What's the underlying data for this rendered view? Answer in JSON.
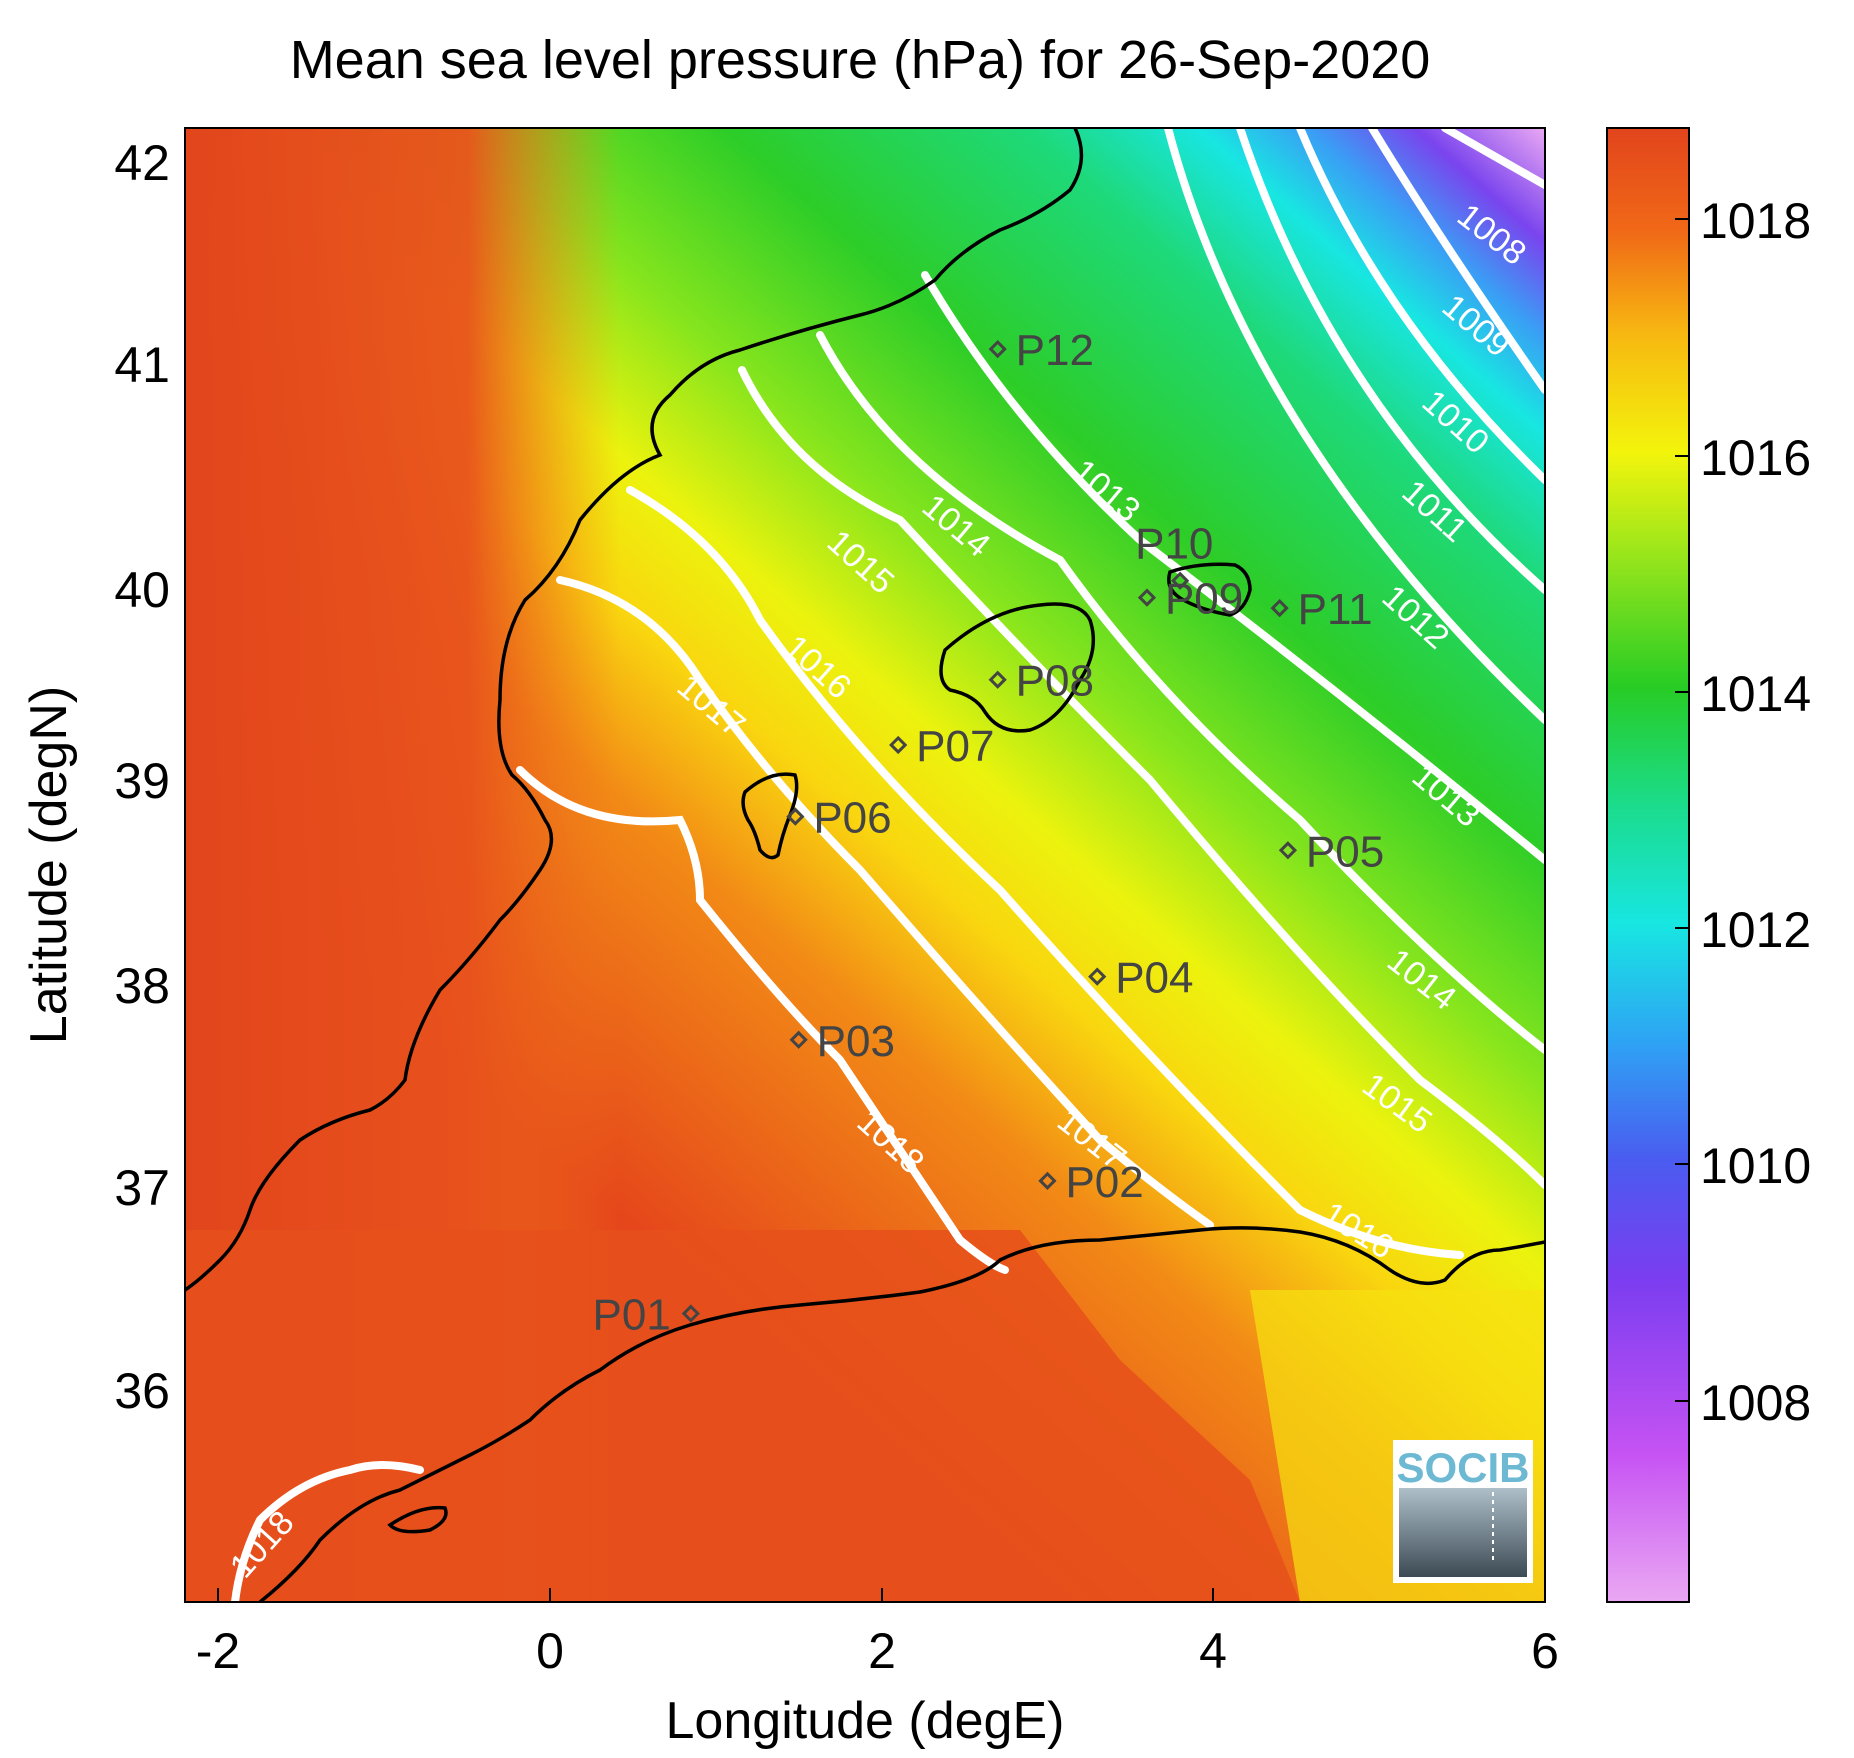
{
  "title": "Mean sea level pressure (hPa) for 26-Sep-2020",
  "chart_data": {
    "type": "heatmap",
    "title": "Mean sea level pressure (hPa) for 26-Sep-2020",
    "xlabel": "Longitude (degE)",
    "ylabel": "Latitude (degN)",
    "xlim": [
      -2.2,
      6
    ],
    "ylim": [
      35.15,
      42.15
    ],
    "x_ticks": [
      "-2",
      "0",
      "2",
      "4",
      "6"
    ],
    "y_ticks": [
      "42",
      "41",
      "40",
      "39",
      "38",
      "37",
      "36"
    ],
    "colorbar": {
      "range": [
        1006.3,
        1018.8
      ],
      "ticks": [
        "1008",
        "1010",
        "1012",
        "1014",
        "1016",
        "1018"
      ]
    },
    "contour_labels": [
      "1008",
      "1009",
      "1010",
      "1011",
      "1012",
      "1013",
      "1014",
      "1015",
      "1016",
      "1017",
      "1018"
    ],
    "points": [
      {
        "name": "P01",
        "lon": 0.85,
        "lat": 36.52
      },
      {
        "name": "P02",
        "lon": 3.0,
        "lat": 37.15
      },
      {
        "name": "P03",
        "lon": 1.5,
        "lat": 37.82
      },
      {
        "name": "P04",
        "lon": 3.3,
        "lat": 38.12
      },
      {
        "name": "P05",
        "lon": 4.45,
        "lat": 38.72
      },
      {
        "name": "P06",
        "lon": 1.48,
        "lat": 38.88
      },
      {
        "name": "P07",
        "lon": 2.1,
        "lat": 39.22
      },
      {
        "name": "P08",
        "lon": 2.7,
        "lat": 39.53
      },
      {
        "name": "P09",
        "lon": 3.6,
        "lat": 39.92
      },
      {
        "name": "P10",
        "lon": 3.8,
        "lat": 40.0
      },
      {
        "name": "P11",
        "lon": 4.4,
        "lat": 39.87
      },
      {
        "name": "P12",
        "lon": 2.7,
        "lat": 41.1
      }
    ],
    "grid": false,
    "colors": {
      "high": "#e2441c",
      "mid_high": "#f6f00c",
      "mid": "#27cc25",
      "mid_low": "#17e8e0",
      "low": "#7a3df0",
      "lowest": "#e8a6f2",
      "contour": "#ffffff",
      "coastline": "#000000",
      "marker": "#444444"
    }
  },
  "logo": {
    "text": "SOCIB"
  }
}
